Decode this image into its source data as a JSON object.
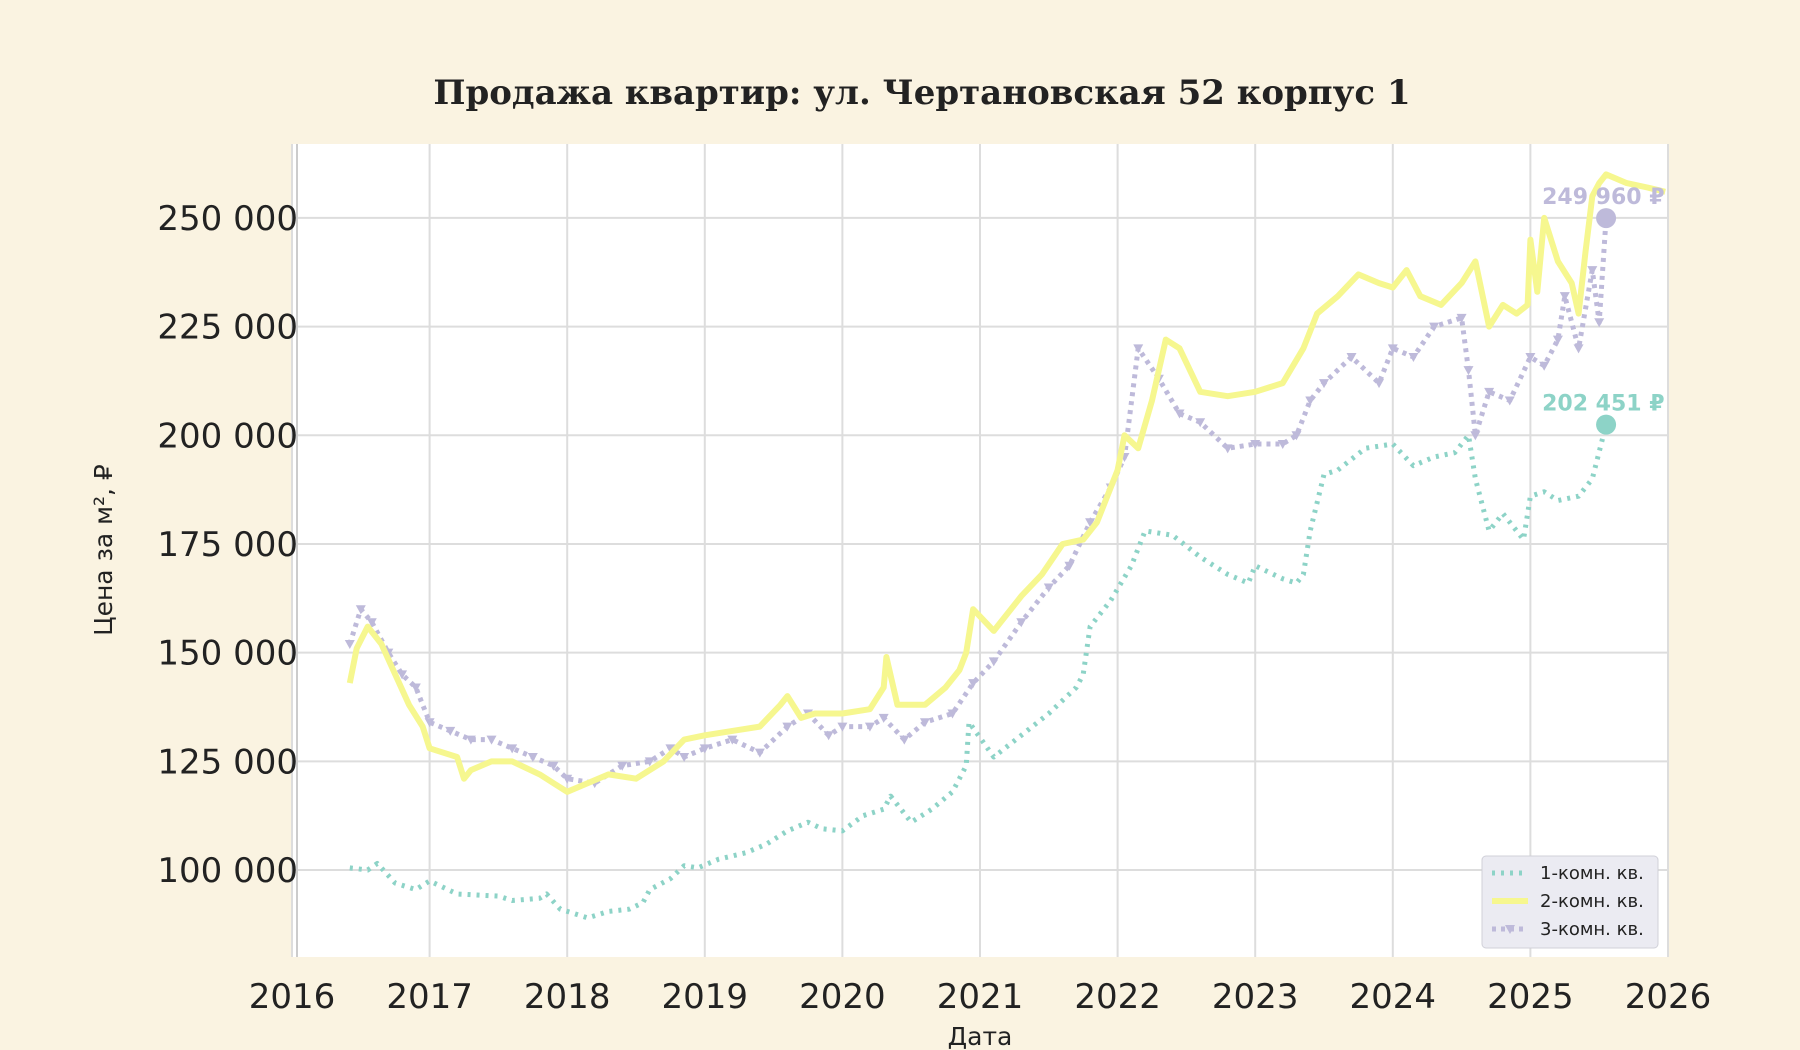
{
  "chart_data": {
    "type": "line",
    "title": "Продажа квартир: ул. Чертановская 52 корпус 1",
    "xlabel": "Дата",
    "ylabel": "Цена за м², ₽",
    "xlim": [
      2016.0,
      2026.0
    ],
    "ylim": [
      80000,
      267000
    ],
    "x_ticks": [
      2016,
      2017,
      2018,
      2019,
      2020,
      2021,
      2022,
      2023,
      2024,
      2025,
      2026
    ],
    "x_tick_labels": [
      "2016",
      "2017",
      "2018",
      "2019",
      "2020",
      "2021",
      "2022",
      "2023",
      "2024",
      "2025",
      "2026"
    ],
    "y_ticks": [
      100000,
      125000,
      150000,
      175000,
      200000,
      225000,
      250000
    ],
    "y_tick_labels": [
      "100 000",
      "125 000",
      "150 000",
      "175 000",
      "200 000",
      "225 000",
      "250 000"
    ],
    "grid": true,
    "legend_position": "bottom-right",
    "background": "#faf3e1",
    "plot_background": "#ffffff",
    "series": [
      {
        "name": "1-комн. кв.",
        "color": "#8dd3c7",
        "line_style": "dotted",
        "x": [
          2016.42,
          2016.55,
          2016.62,
          2016.75,
          2016.9,
          2017.0,
          2017.2,
          2017.5,
          2017.6,
          2017.8,
          2017.85,
          2017.95,
          2018.15,
          2018.3,
          2018.45,
          2018.55,
          2018.6,
          2018.75,
          2018.85,
          2018.95,
          2019.1,
          2019.3,
          2019.45,
          2019.6,
          2019.75,
          2019.85,
          2020.0,
          2020.15,
          2020.3,
          2020.35,
          2020.5,
          2020.65,
          2020.8,
          2020.9,
          2020.92,
          2021.1,
          2021.3,
          2021.5,
          2021.7,
          2021.75,
          2021.8,
          2021.95,
          2022.1,
          2022.2,
          2022.4,
          2022.6,
          2022.8,
          2022.95,
          2023.0,
          2023.2,
          2023.3,
          2023.35,
          2023.4,
          2023.5,
          2023.6,
          2023.8,
          2024.0,
          2024.15,
          2024.3,
          2024.45,
          2024.55,
          2024.6,
          2024.7,
          2024.8,
          2024.95,
          2025.0,
          2025.1,
          2025.2,
          2025.35,
          2025.45,
          2025.55
        ],
        "values": [
          100500,
          100000,
          101500,
          97000,
          95500,
          97500,
          94500,
          94000,
          93000,
          93500,
          94500,
          91000,
          89000,
          90500,
          91000,
          92500,
          95500,
          98000,
          101000,
          100500,
          102500,
          104000,
          106000,
          109000,
          111000,
          109500,
          109000,
          112500,
          114000,
          117000,
          111000,
          114000,
          118000,
          124000,
          134000,
          126000,
          131000,
          136000,
          142000,
          145000,
          156000,
          162000,
          170000,
          178000,
          177000,
          172000,
          168000,
          166000,
          170000,
          167000,
          166000,
          168000,
          178000,
          191000,
          192000,
          197000,
          198000,
          193000,
          195000,
          196000,
          200000,
          190000,
          178000,
          182000,
          176000,
          186000,
          187000,
          185000,
          186000,
          190000,
          202451
        ]
      },
      {
        "name": "2-комн. кв.",
        "color": "#f6f78f",
        "line_style": "solid",
        "x": [
          2016.42,
          2016.47,
          2016.55,
          2016.65,
          2016.75,
          2016.85,
          2016.95,
          2017.0,
          2017.2,
          2017.25,
          2017.3,
          2017.45,
          2017.6,
          2017.8,
          2017.9,
          2018.0,
          2018.15,
          2018.3,
          2018.5,
          2018.7,
          2018.85,
          2019.0,
          2019.2,
          2019.4,
          2019.55,
          2019.6,
          2019.7,
          2019.8,
          2020.0,
          2020.2,
          2020.3,
          2020.32,
          2020.4,
          2020.6,
          2020.75,
          2020.85,
          2020.9,
          2020.95,
          2021.1,
          2021.3,
          2021.45,
          2021.6,
          2021.75,
          2021.85,
          2022.0,
          2022.05,
          2022.15,
          2022.25,
          2022.35,
          2022.45,
          2022.6,
          2022.8,
          2023.0,
          2023.2,
          2023.35,
          2023.45,
          2023.6,
          2023.75,
          2023.9,
          2024.0,
          2024.1,
          2024.2,
          2024.35,
          2024.5,
          2024.6,
          2024.7,
          2024.8,
          2024.9,
          2024.98,
          2025.0,
          2025.05,
          2025.1,
          2025.2,
          2025.3,
          2025.35,
          2025.4,
          2025.45,
          2025.5,
          2025.55,
          2025.7,
          2025.85,
          2025.98
        ],
        "values": [
          143000,
          151000,
          156000,
          152000,
          145000,
          138000,
          133000,
          128000,
          126000,
          121000,
          123000,
          125000,
          125000,
          122000,
          120000,
          118000,
          120000,
          122000,
          121000,
          125000,
          130000,
          131000,
          132000,
          133000,
          138000,
          140000,
          135000,
          136000,
          136000,
          137000,
          142000,
          149000,
          138000,
          138000,
          142000,
          146000,
          150000,
          160000,
          155000,
          163000,
          168000,
          175000,
          176000,
          180000,
          192000,
          200000,
          197000,
          208000,
          222000,
          220000,
          210000,
          209000,
          210000,
          212000,
          220000,
          228000,
          232000,
          237000,
          235000,
          234000,
          238000,
          232000,
          230000,
          235000,
          240000,
          225000,
          230000,
          228000,
          230000,
          245000,
          233000,
          250000,
          240000,
          235000,
          228000,
          242000,
          255000,
          258000,
          260000,
          258000,
          257000,
          256000
        ]
      },
      {
        "name": "3-комн. кв.",
        "color": "#bebada",
        "line_style": "dotted-marker",
        "x": [
          2016.42,
          2016.5,
          2016.58,
          2016.7,
          2016.8,
          2016.9,
          2017.0,
          2017.15,
          2017.3,
          2017.45,
          2017.6,
          2017.75,
          2017.9,
          2018.0,
          2018.2,
          2018.4,
          2018.6,
          2018.75,
          2018.85,
          2019.0,
          2019.2,
          2019.4,
          2019.6,
          2019.75,
          2019.9,
          2020.0,
          2020.2,
          2020.3,
          2020.45,
          2020.6,
          2020.8,
          2020.95,
          2021.1,
          2021.3,
          2021.5,
          2021.65,
          2021.8,
          2021.95,
          2022.05,
          2022.15,
          2022.3,
          2022.45,
          2022.6,
          2022.8,
          2023.0,
          2023.2,
          2023.3,
          2023.4,
          2023.5,
          2023.7,
          2023.9,
          2024.0,
          2024.15,
          2024.3,
          2024.5,
          2024.55,
          2024.6,
          2024.7,
          2024.85,
          2025.0,
          2025.1,
          2025.2,
          2025.25,
          2025.35,
          2025.45,
          2025.5,
          2025.55
        ],
        "values": [
          152000,
          160000,
          157000,
          150000,
          145000,
          142000,
          134000,
          132000,
          130000,
          130000,
          128000,
          126000,
          124000,
          121000,
          120000,
          124000,
          125000,
          128000,
          126000,
          128000,
          130000,
          127000,
          133000,
          136000,
          131000,
          133000,
          133000,
          135000,
          130000,
          134000,
          136000,
          143000,
          148000,
          157000,
          165000,
          170000,
          180000,
          188000,
          195000,
          220000,
          213000,
          205000,
          203000,
          197000,
          198000,
          198000,
          200000,
          208000,
          212000,
          218000,
          212000,
          220000,
          218000,
          225000,
          227000,
          215000,
          200000,
          210000,
          208000,
          218000,
          216000,
          222000,
          232000,
          220000,
          238000,
          226000,
          249960
        ]
      }
    ],
    "end_labels": [
      {
        "text": "249 960 ₽",
        "series": "3-комн. кв.",
        "x": 2025.55,
        "y": 249960,
        "color": "#bebada"
      },
      {
        "text": "202 451 ₽",
        "series": "1-комн. кв.",
        "x": 2025.55,
        "y": 202451,
        "color": "#8dd3c7"
      }
    ]
  }
}
